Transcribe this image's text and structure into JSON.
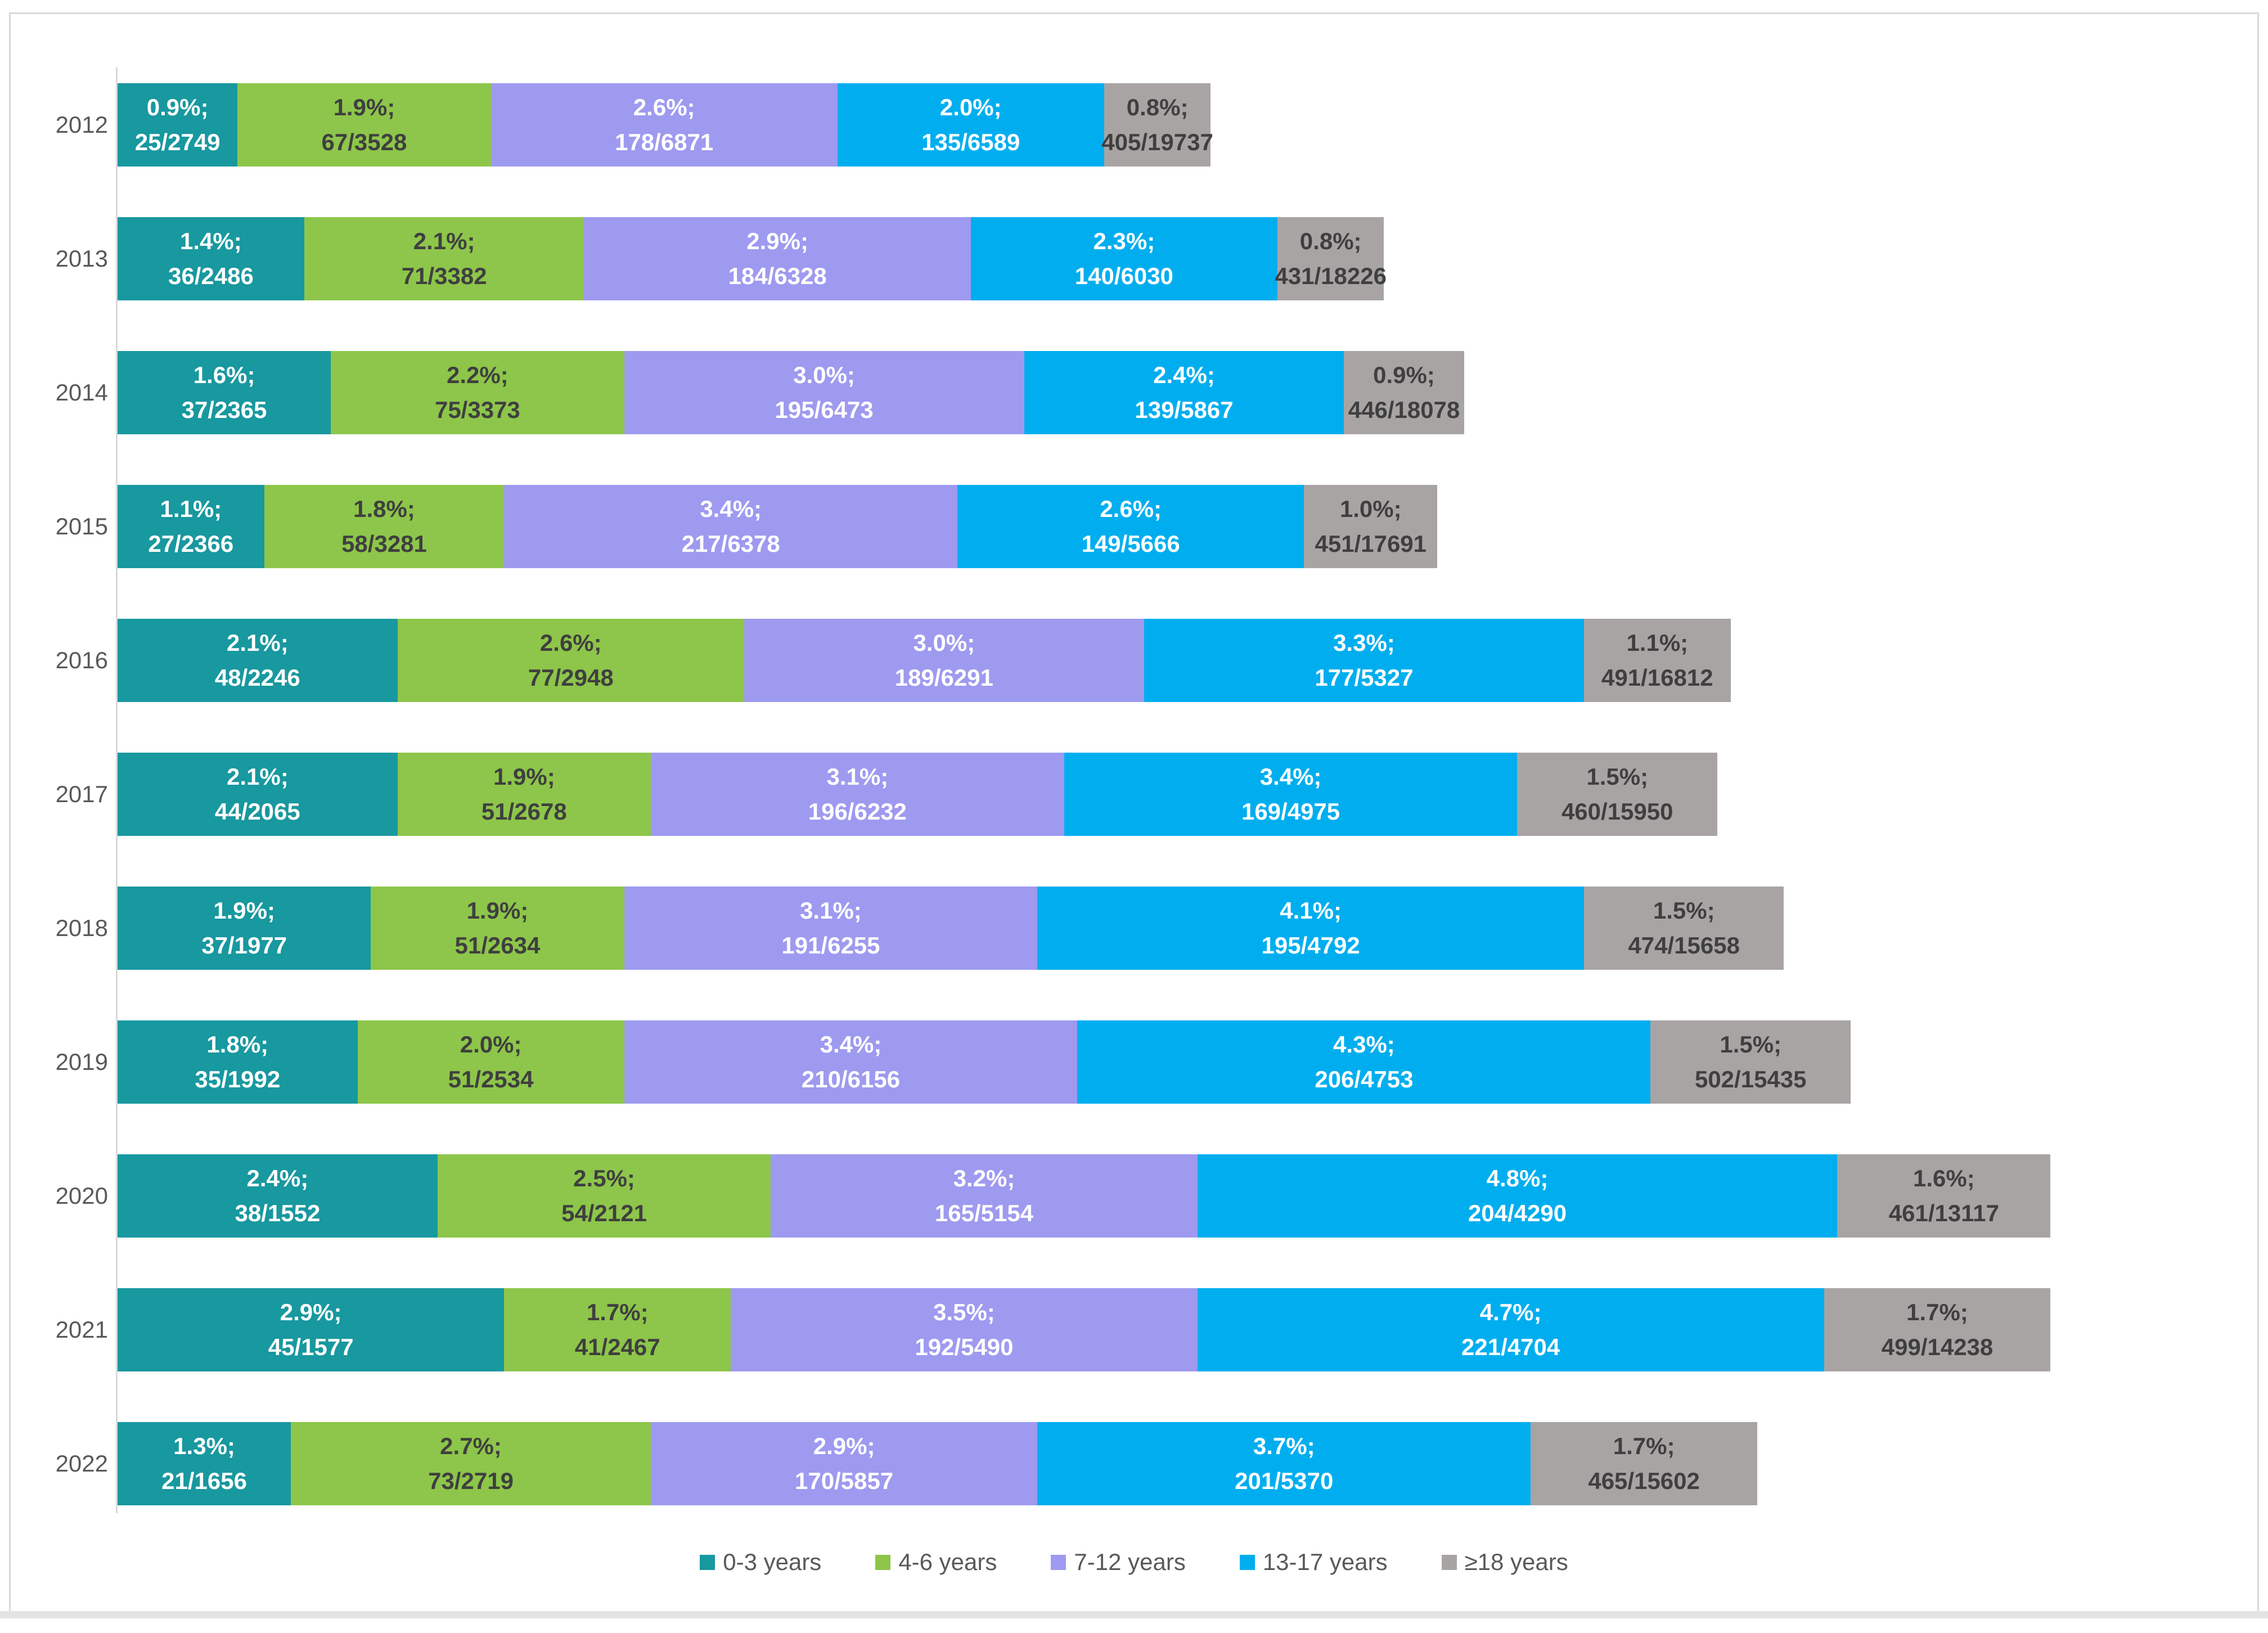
{
  "chart_data": {
    "type": "bar",
    "orientation": "horizontal-stacked",
    "title": "",
    "xlabel": "",
    "ylabel": "",
    "unit": "percent (segment length = rate %)",
    "grid": false,
    "legend_position": "bottom-center",
    "series": [
      {
        "name": "0-3 years",
        "color": "#18989F",
        "text_color": "#ffffff"
      },
      {
        "name": "4-6 years",
        "color": "#8DC64A",
        "text_color": "#3F3F3F"
      },
      {
        "name": "7-12 years",
        "color": "#9E9AF0",
        "text_color": "#ffffff"
      },
      {
        "name": "13-17 years",
        "color": "#00AEEF",
        "text_color": "#ffffff"
      },
      {
        "name": "≥18 years",
        "color": "#A9A4A4",
        "text_color": "#3F3F3F"
      }
    ],
    "categories": [
      "2012",
      "2013",
      "2014",
      "2015",
      "2016",
      "2017",
      "2018",
      "2019",
      "2020",
      "2021",
      "2022"
    ],
    "years": [
      {
        "label": "2012",
        "segments": [
          {
            "pct": "0.9%;",
            "frac": "25/2749",
            "rate": 0.9
          },
          {
            "pct": "1.9%;",
            "frac": "67/3528",
            "rate": 1.9
          },
          {
            "pct": "2.6%;",
            "frac": "178/6871",
            "rate": 2.6
          },
          {
            "pct": "2.0%;",
            "frac": "135/6589",
            "rate": 2.0
          },
          {
            "pct": "0.8%;",
            "frac": "405/19737",
            "rate": 0.8
          }
        ]
      },
      {
        "label": "2013",
        "segments": [
          {
            "pct": "1.4%;",
            "frac": "36/2486",
            "rate": 1.4
          },
          {
            "pct": "2.1%;",
            "frac": "71/3382",
            "rate": 2.1
          },
          {
            "pct": "2.9%;",
            "frac": "184/6328",
            "rate": 2.9
          },
          {
            "pct": "2.3%;",
            "frac": "140/6030",
            "rate": 2.3
          },
          {
            "pct": "0.8%;",
            "frac": "431/18226",
            "rate": 0.8
          }
        ]
      },
      {
        "label": "2014",
        "segments": [
          {
            "pct": "1.6%;",
            "frac": "37/2365",
            "rate": 1.6
          },
          {
            "pct": "2.2%;",
            "frac": "75/3373",
            "rate": 2.2
          },
          {
            "pct": "3.0%;",
            "frac": "195/6473",
            "rate": 3.0
          },
          {
            "pct": "2.4%;",
            "frac": "139/5867",
            "rate": 2.4
          },
          {
            "pct": "0.9%;",
            "frac": "446/18078",
            "rate": 0.9
          }
        ]
      },
      {
        "label": "2015",
        "segments": [
          {
            "pct": "1.1%;",
            "frac": "27/2366",
            "rate": 1.1
          },
          {
            "pct": "1.8%;",
            "frac": "58/3281",
            "rate": 1.8
          },
          {
            "pct": "3.4%;",
            "frac": "217/6378",
            "rate": 3.4
          },
          {
            "pct": "2.6%;",
            "frac": "149/5666",
            "rate": 2.6
          },
          {
            "pct": "1.0%;",
            "frac": "451/17691",
            "rate": 1.0
          }
        ]
      },
      {
        "label": "2016",
        "segments": [
          {
            "pct": "2.1%;",
            "frac": "48/2246",
            "rate": 2.1
          },
          {
            "pct": "2.6%;",
            "frac": "77/2948",
            "rate": 2.6
          },
          {
            "pct": "3.0%;",
            "frac": "189/6291",
            "rate": 3.0
          },
          {
            "pct": "3.3%;",
            "frac": "177/5327",
            "rate": 3.3
          },
          {
            "pct": "1.1%;",
            "frac": "491/16812",
            "rate": 1.1
          }
        ]
      },
      {
        "label": "2017",
        "segments": [
          {
            "pct": "2.1%;",
            "frac": "44/2065",
            "rate": 2.1
          },
          {
            "pct": "1.9%;",
            "frac": "51/2678",
            "rate": 1.9
          },
          {
            "pct": "3.1%;",
            "frac": "196/6232",
            "rate": 3.1
          },
          {
            "pct": "3.4%;",
            "frac": "169/4975",
            "rate": 3.4
          },
          {
            "pct": "1.5%;",
            "frac": "460/15950",
            "rate": 1.5
          }
        ]
      },
      {
        "label": "2018",
        "segments": [
          {
            "pct": "1.9%;",
            "frac": "37/1977",
            "rate": 1.9
          },
          {
            "pct": "1.9%;",
            "frac": "51/2634",
            "rate": 1.9
          },
          {
            "pct": "3.1%;",
            "frac": "191/6255",
            "rate": 3.1
          },
          {
            "pct": "4.1%;",
            "frac": "195/4792",
            "rate": 4.1
          },
          {
            "pct": "1.5%;",
            "frac": "474/15658",
            "rate": 1.5
          }
        ]
      },
      {
        "label": "2019",
        "segments": [
          {
            "pct": "1.8%;",
            "frac": "35/1992",
            "rate": 1.8
          },
          {
            "pct": "2.0%;",
            "frac": "51/2534",
            "rate": 2.0
          },
          {
            "pct": "3.4%;",
            "frac": "210/6156",
            "rate": 3.4
          },
          {
            "pct": "4.3%;",
            "frac": "206/4753",
            "rate": 4.3
          },
          {
            "pct": "1.5%;",
            "frac": "502/15435",
            "rate": 1.5
          }
        ]
      },
      {
        "label": "2020",
        "segments": [
          {
            "pct": "2.4%;",
            "frac": "38/1552",
            "rate": 2.4
          },
          {
            "pct": "2.5%;",
            "frac": "54/2121",
            "rate": 2.5
          },
          {
            "pct": "3.2%;",
            "frac": "165/5154",
            "rate": 3.2
          },
          {
            "pct": "4.8%;",
            "frac": "204/4290",
            "rate": 4.8
          },
          {
            "pct": "1.6%;",
            "frac": "461/13117",
            "rate": 1.6
          }
        ]
      },
      {
        "label": "2021",
        "segments": [
          {
            "pct": "2.9%;",
            "frac": "45/1577",
            "rate": 2.9
          },
          {
            "pct": "1.7%;",
            "frac": "41/2467",
            "rate": 1.7
          },
          {
            "pct": "3.5%;",
            "frac": "192/5490",
            "rate": 3.5
          },
          {
            "pct": "4.7%;",
            "frac": "221/4704",
            "rate": 4.7
          },
          {
            "pct": "1.7%;",
            "frac": "499/14238",
            "rate": 1.7
          }
        ]
      },
      {
        "label": "2022",
        "segments": [
          {
            "pct": "1.3%;",
            "frac": "21/1656",
            "rate": 1.3
          },
          {
            "pct": "2.7%;",
            "frac": "73/2719",
            "rate": 2.7
          },
          {
            "pct": "2.9%;",
            "frac": "170/5857",
            "rate": 2.9
          },
          {
            "pct": "3.7%;",
            "frac": "201/5370",
            "rate": 3.7
          },
          {
            "pct": "1.7%;",
            "frac": "465/15602",
            "rate": 1.7
          }
        ]
      }
    ],
    "legend": [
      "0-3 years",
      "4-6 years",
      "7-12 years",
      "13-17 years",
      "≥18 years"
    ],
    "colors": {
      "teal": "#18989F",
      "green": "#8DC64A",
      "purple": "#9E9AF0",
      "blue": "#00AEEF",
      "gray": "#A9A4A4",
      "axis_line": "#D9D9D9",
      "frame_border": "#D9D9D9",
      "year_label_text": "#595959",
      "legend_text": "#595959",
      "dark_segment_text": "#3F3F3F"
    }
  }
}
